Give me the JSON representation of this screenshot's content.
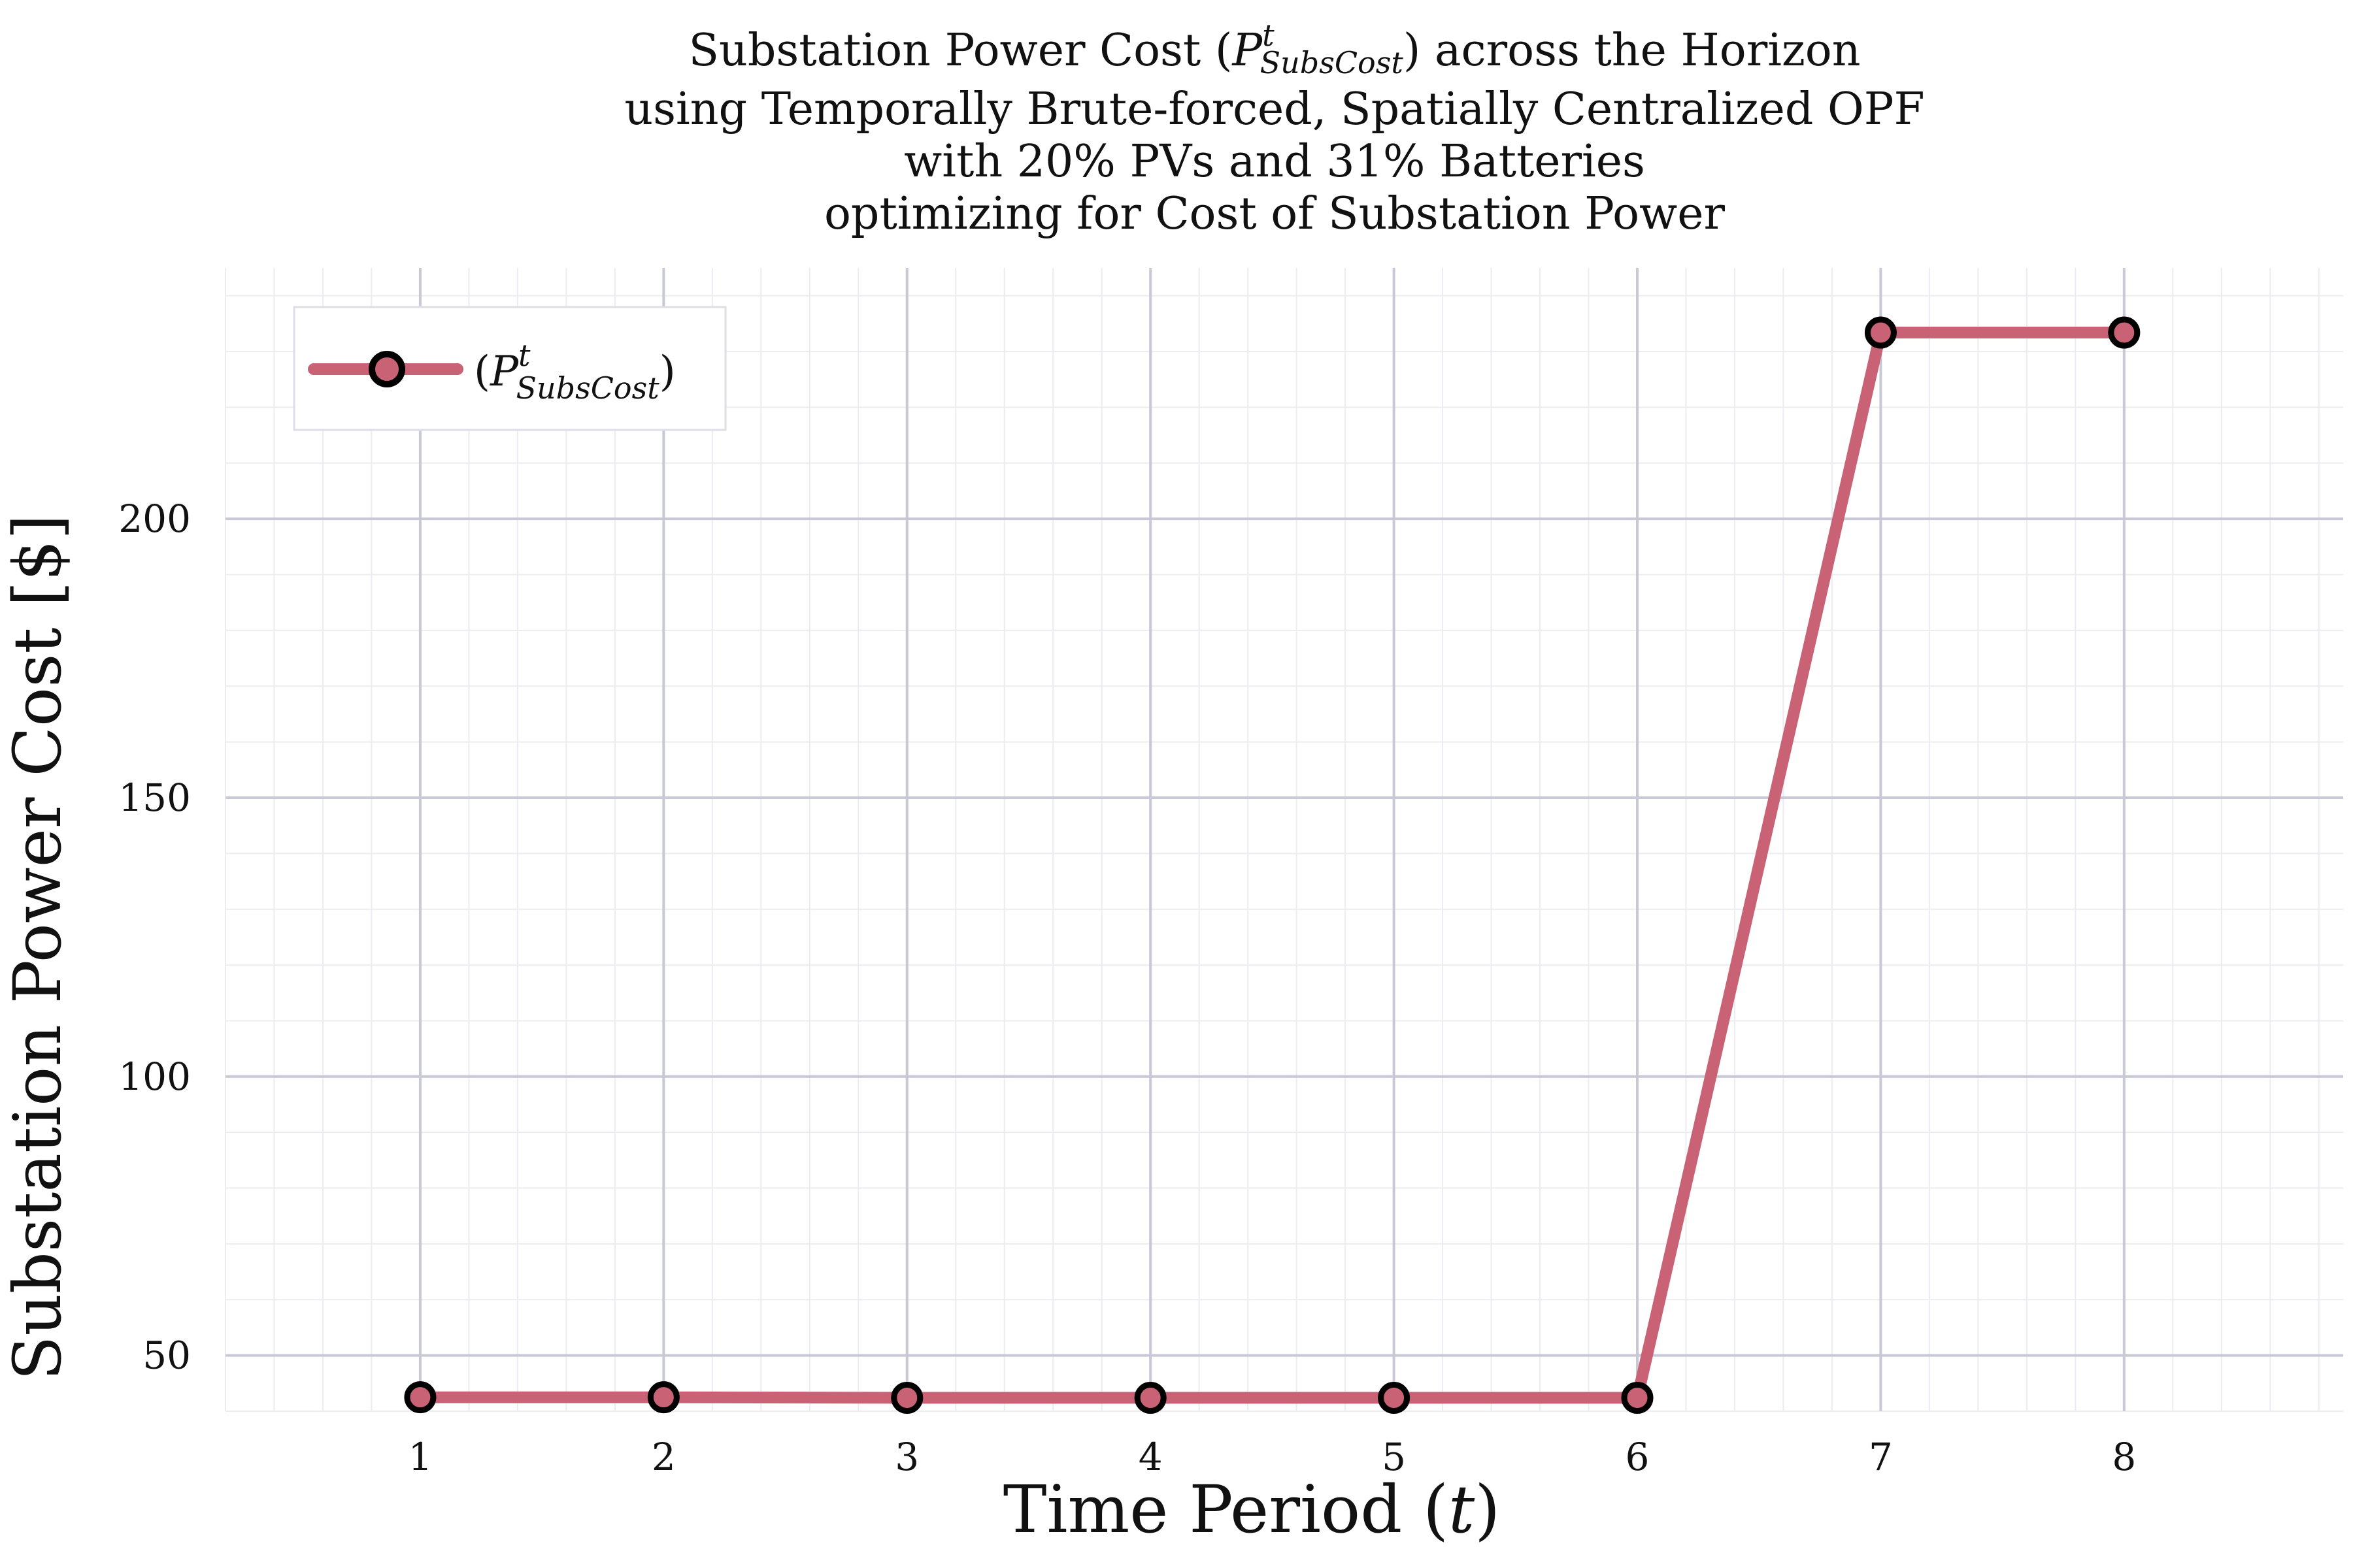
{
  "chart_data": {
    "type": "line",
    "title_lines": [
      {
        "pre": "Substation Power Cost (",
        "sym": "P",
        "sup": "t",
        "sub": "SubsCost",
        "post": ") across the Horizon"
      },
      {
        "text": "using Temporally Brute-forced, Spatially Centralized OPF"
      },
      {
        "text": "with 20% PVs and 31% Batteries"
      },
      {
        "text": "optimizing for Cost of Substation Power"
      }
    ],
    "xlabel": {
      "text": "Time Period (",
      "var": "t",
      "post": ")"
    },
    "ylabel": "Substation Power Cost [$]",
    "x": [
      1,
      2,
      3,
      4,
      5,
      6,
      7,
      8
    ],
    "xticks": [
      "1",
      "2",
      "3",
      "4",
      "5",
      "6",
      "7",
      "8"
    ],
    "yticks": [
      "50",
      "100",
      "150",
      "200"
    ],
    "xlim": [
      0.2,
      8.9
    ],
    "ylim": [
      40,
      245
    ],
    "grid": true,
    "legend_placement": "top-left",
    "series": [
      {
        "name": {
          "pre": "(",
          "sym": "P",
          "sup": "t",
          "sub": "SubsCost",
          "post": ")"
        },
        "values": [
          42.5,
          42.5,
          42.4,
          42.4,
          42.4,
          42.4,
          233.4,
          233.4
        ],
        "color": "#c96274",
        "marker_edge": "#000000"
      }
    ]
  }
}
